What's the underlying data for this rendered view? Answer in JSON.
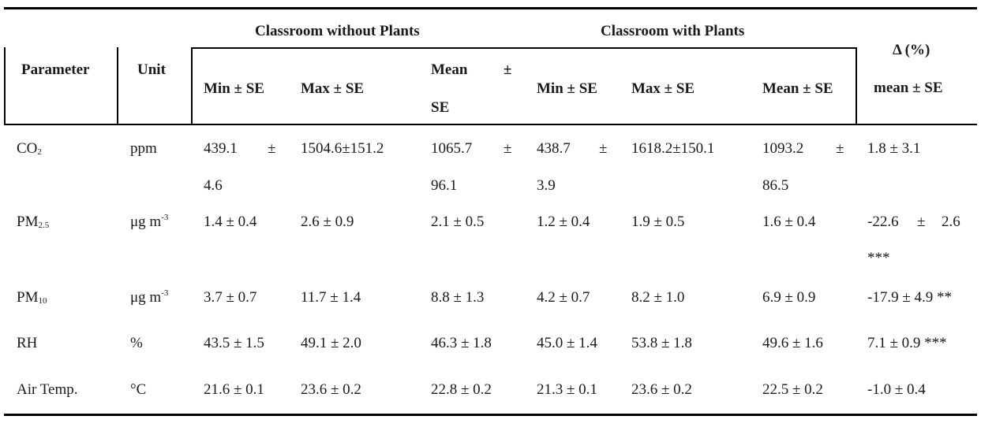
{
  "table": {
    "header": {
      "parameter": "Parameter",
      "unit": "Unit",
      "group_without": "Classroom without Plants",
      "group_with": "Classroom with Plants",
      "delta_line1": "Δ (%)",
      "delta_line2": "mean ± SE",
      "min": "Min ± SE",
      "max": "Max ± SE",
      "mean_line1": "Mean",
      "mean_pm": "±",
      "mean_line2": "SE",
      "min_w": "Min ± SE",
      "max_w": "Max ± SE",
      "mean_w": "Mean ± SE"
    },
    "rows": [
      {
        "param_main": "CO",
        "param_sub": "2",
        "unit_main": "ppm",
        "unit_sup": "",
        "c1a": "439.1",
        "c1b": "±",
        "c1c": "4.6",
        "c2": "1504.6±151.2",
        "c3a": "1065.7",
        "c3b": "±",
        "c3c": "96.1",
        "c4a": "438.7",
        "c4b": "±",
        "c4c": "3.9",
        "c5": "1618.2±150.1",
        "c6a": "1093.2",
        "c6b": "±",
        "c6c": "86.5",
        "d1": "1.8 ± 3.1"
      },
      {
        "param_main": "PM",
        "param_sub": "2.5",
        "unit_main": "μg m",
        "unit_sup": "-3",
        "c1": "1.4 ± 0.4",
        "c2": "2.6 ± 0.9",
        "c3": "2.1 ± 0.5",
        "c4": "1.2 ± 0.4",
        "c5": "1.9 ± 0.5",
        "c6": "1.6 ± 0.4",
        "d1a": "-22.6",
        "d1b": "±",
        "d1c": "2.6",
        "d1sig": "***"
      },
      {
        "param_main": "PM",
        "param_sub": "10",
        "unit_main": "μg m",
        "unit_sup": "-3",
        "c1": "3.7 ± 0.7",
        "c2": "11.7 ± 1.4",
        "c3": "8.8 ± 1.3",
        "c4": "4.2 ± 0.7",
        "c5": "8.2 ± 1.0",
        "c6": "6.9 ± 0.9",
        "d1": "-17.9 ± 4.9 **"
      },
      {
        "param_main": "RH",
        "unit_main": "%",
        "c1": "43.5 ± 1.5",
        "c2": "49.1 ± 2.0",
        "c3": "46.3 ± 1.8",
        "c4": "45.0 ± 1.4",
        "c5": "53.8 ± 1.8",
        "c6": "49.6 ± 1.6",
        "d1": "7.1 ± 0.9 ***"
      },
      {
        "param_main": "Air Temp.",
        "unit_main": "°C",
        "c1": "21.6 ± 0.1",
        "c2": "23.6 ± 0.2",
        "c3": "22.8 ± 0.2",
        "c4": "21.3 ± 0.1",
        "c5": "23.6 ± 0.2",
        "c6": "22.5 ± 0.2",
        "d1": "-1.0 ± 0.4"
      }
    ]
  }
}
